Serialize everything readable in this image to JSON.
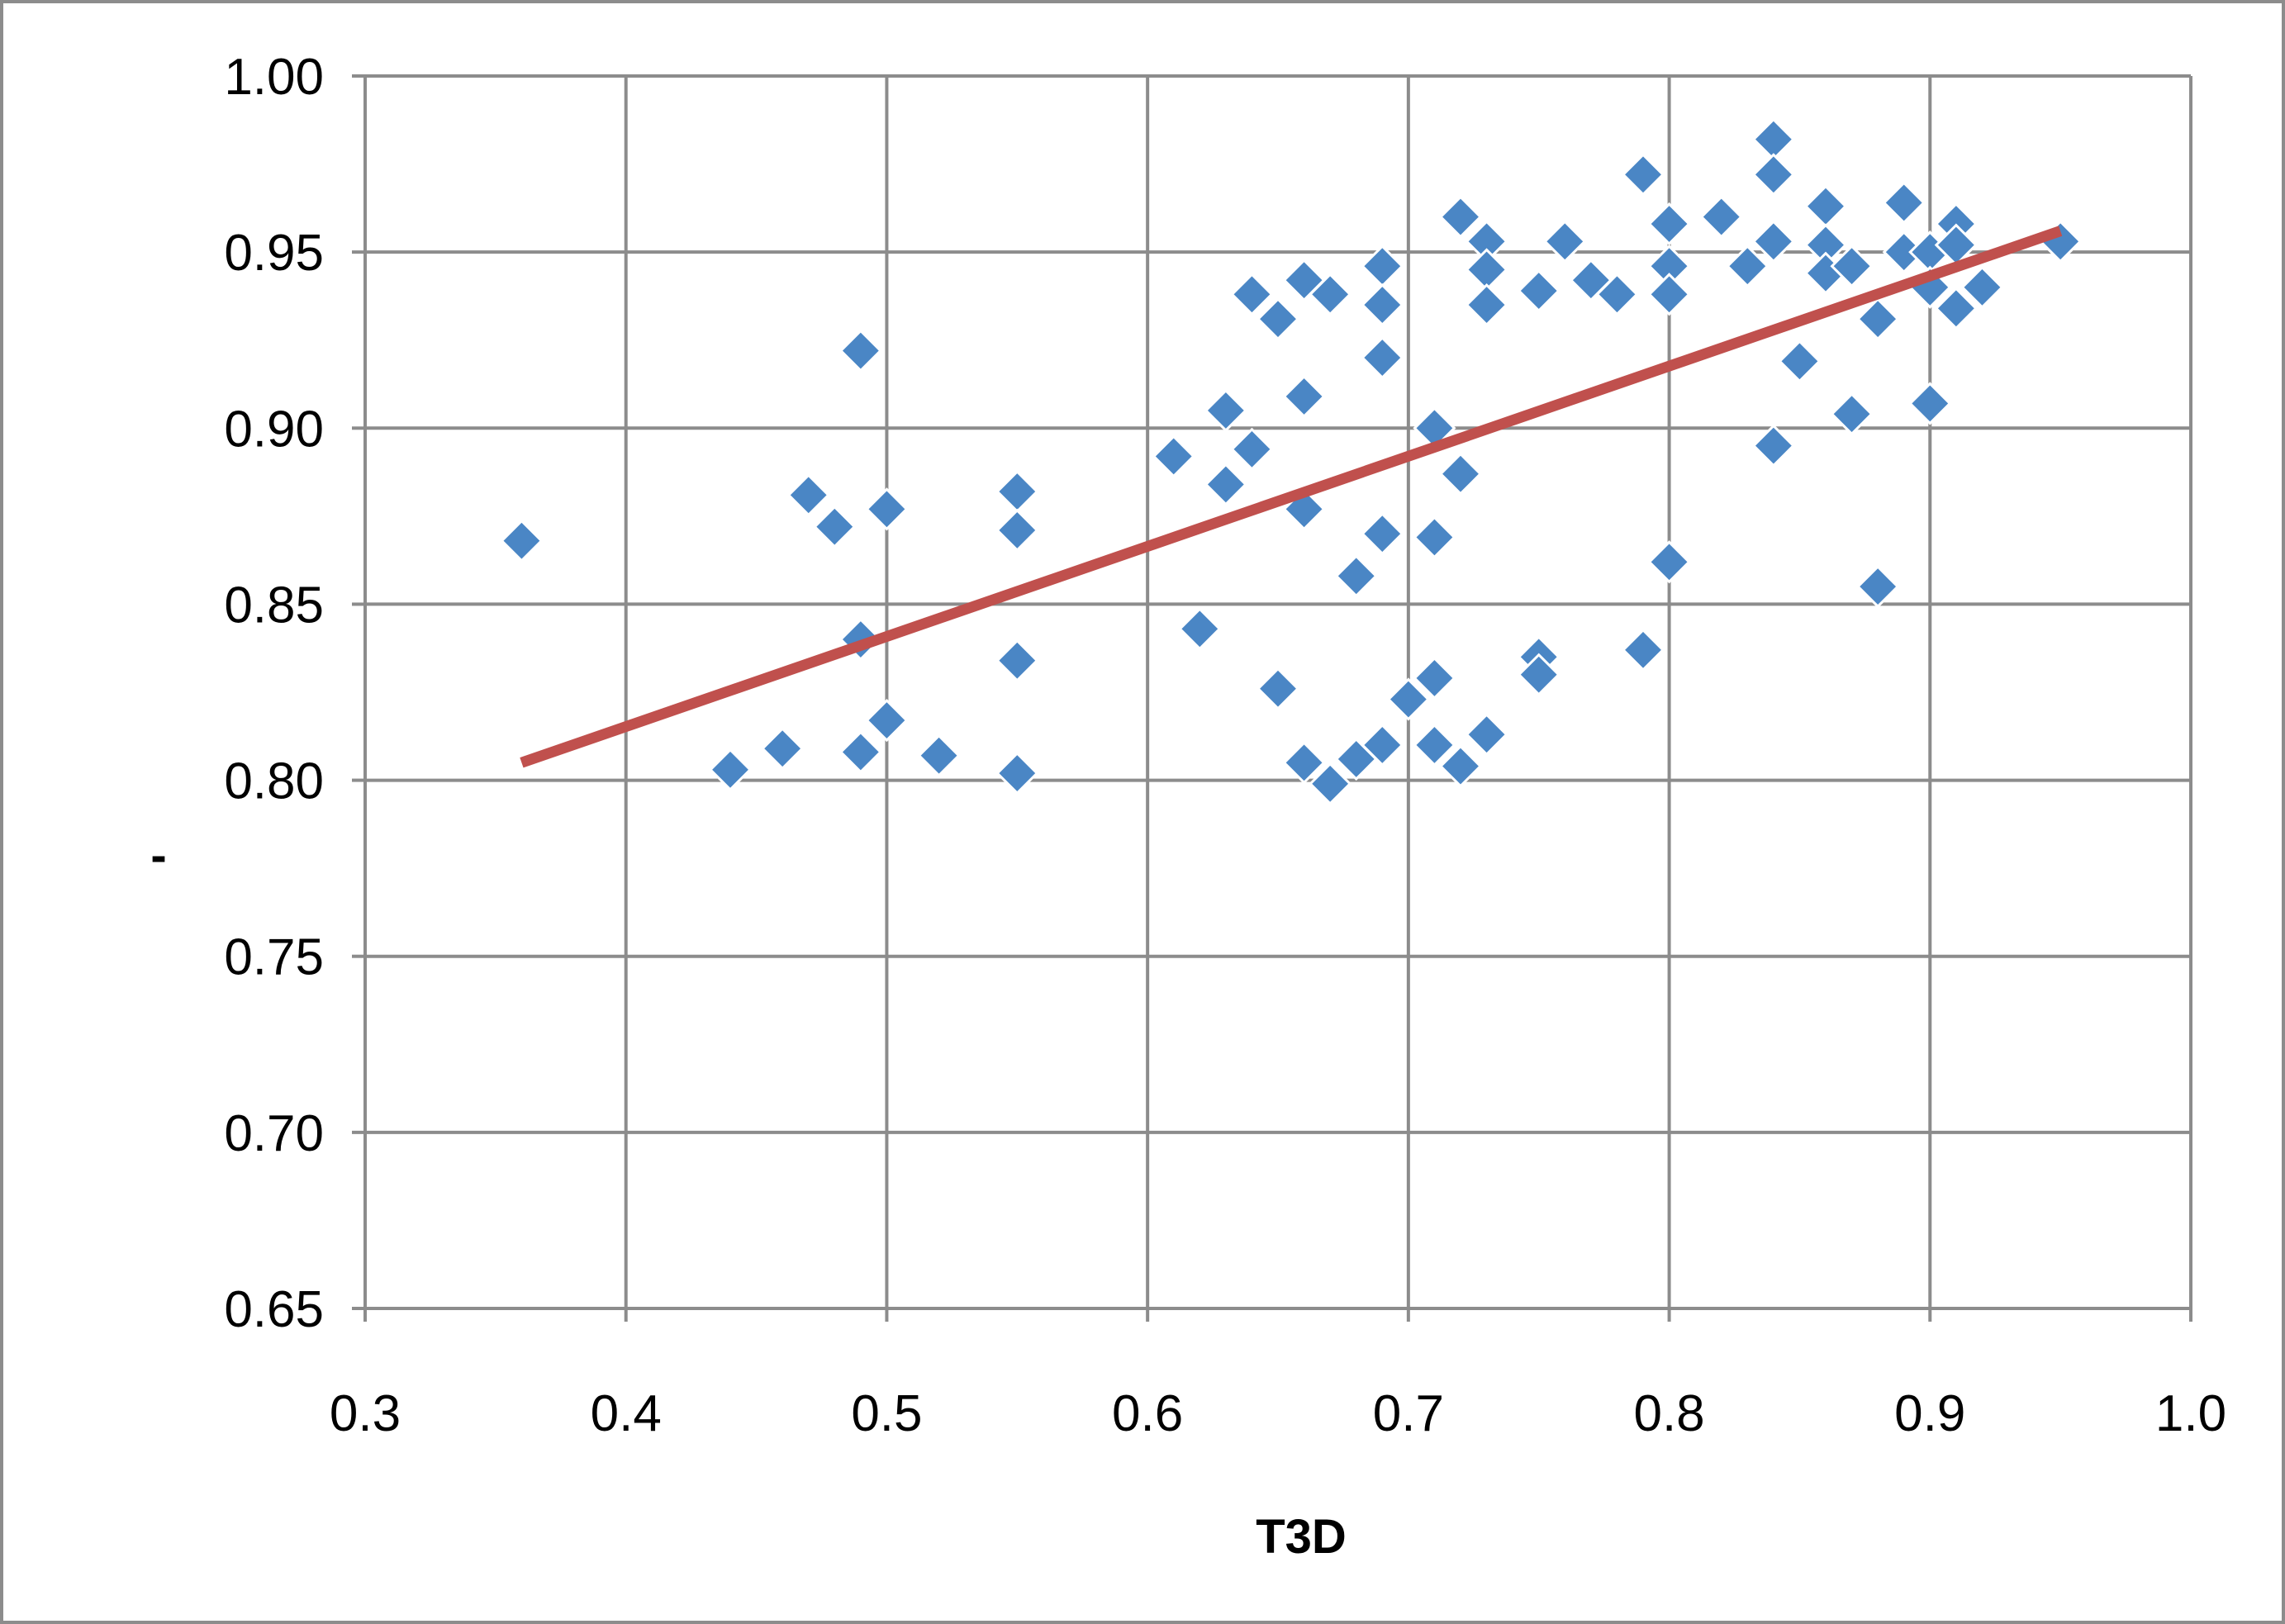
{
  "chart_data": {
    "type": "scatter",
    "title": "",
    "xlabel": "T3D",
    "ylabel": "-",
    "xlim": [
      0.3,
      1.0
    ],
    "ylim": [
      0.65,
      1.0
    ],
    "x_ticks": [
      "0.3",
      "0.4",
      "0.5",
      "0.6",
      "0.7",
      "0.8",
      "0.9",
      "1.0"
    ],
    "y_ticks": [
      "0.65",
      "0.70",
      "0.75",
      "0.80",
      "0.85",
      "0.90",
      "0.95",
      "1.00"
    ],
    "grid": true,
    "legend": "none",
    "series": [
      {
        "marker": "diamond",
        "color": "#4a86c5",
        "points": [
          [
            0.36,
            0.868
          ],
          [
            0.44,
            0.803
          ],
          [
            0.46,
            0.809
          ],
          [
            0.47,
            0.881
          ],
          [
            0.48,
            0.872
          ],
          [
            0.49,
            0.922
          ],
          [
            0.49,
            0.84
          ],
          [
            0.49,
            0.808
          ],
          [
            0.5,
            0.877
          ],
          [
            0.5,
            0.817
          ],
          [
            0.52,
            0.807
          ],
          [
            0.55,
            0.882
          ],
          [
            0.55,
            0.871
          ],
          [
            0.55,
            0.834
          ],
          [
            0.55,
            0.802
          ],
          [
            0.61,
            0.892
          ],
          [
            0.62,
            0.843
          ],
          [
            0.63,
            0.905
          ],
          [
            0.63,
            0.884
          ],
          [
            0.64,
            0.938
          ],
          [
            0.64,
            0.894
          ],
          [
            0.65,
            0.931
          ],
          [
            0.65,
            0.826
          ],
          [
            0.66,
            0.942
          ],
          [
            0.66,
            0.909
          ],
          [
            0.66,
            0.877
          ],
          [
            0.66,
            0.805
          ],
          [
            0.67,
            0.938
          ],
          [
            0.67,
            0.799
          ],
          [
            0.68,
            0.858
          ],
          [
            0.68,
            0.806
          ],
          [
            0.69,
            0.946
          ],
          [
            0.69,
            0.935
          ],
          [
            0.69,
            0.92
          ],
          [
            0.69,
            0.87
          ],
          [
            0.69,
            0.81
          ],
          [
            0.7,
            0.823
          ],
          [
            0.71,
            0.9
          ],
          [
            0.71,
            0.869
          ],
          [
            0.71,
            0.829
          ],
          [
            0.71,
            0.81
          ],
          [
            0.72,
            0.96
          ],
          [
            0.72,
            0.887
          ],
          [
            0.72,
            0.804
          ],
          [
            0.73,
            0.953
          ],
          [
            0.73,
            0.945
          ],
          [
            0.73,
            0.935
          ],
          [
            0.73,
            0.813
          ],
          [
            0.75,
            0.939
          ],
          [
            0.75,
            0.835
          ],
          [
            0.75,
            0.83
          ],
          [
            0.76,
            0.953
          ],
          [
            0.77,
            0.942
          ],
          [
            0.78,
            0.938
          ],
          [
            0.79,
            0.972
          ],
          [
            0.79,
            0.837
          ],
          [
            0.8,
            0.958
          ],
          [
            0.8,
            0.946
          ],
          [
            0.8,
            0.938
          ],
          [
            0.8,
            0.862
          ],
          [
            0.82,
            0.96
          ],
          [
            0.83,
            0.946
          ],
          [
            0.84,
            0.982
          ],
          [
            0.84,
            0.972
          ],
          [
            0.84,
            0.953
          ],
          [
            0.84,
            0.895
          ],
          [
            0.85,
            0.919
          ],
          [
            0.86,
            0.963
          ],
          [
            0.86,
            0.952
          ],
          [
            0.86,
            0.944
          ],
          [
            0.87,
            0.946
          ],
          [
            0.87,
            0.904
          ],
          [
            0.88,
            0.931
          ],
          [
            0.88,
            0.855
          ],
          [
            0.89,
            0.964
          ],
          [
            0.89,
            0.95
          ],
          [
            0.9,
            0.95
          ],
          [
            0.9,
            0.94
          ],
          [
            0.9,
            0.907
          ],
          [
            0.91,
            0.958
          ],
          [
            0.91,
            0.952
          ],
          [
            0.91,
            0.934
          ],
          [
            0.92,
            0.94
          ],
          [
            0.95,
            0.953
          ]
        ]
      }
    ],
    "trendline": {
      "type": "linear",
      "color": "#c0504d",
      "from": [
        0.36,
        0.805
      ],
      "to": [
        0.95,
        0.956
      ]
    }
  }
}
